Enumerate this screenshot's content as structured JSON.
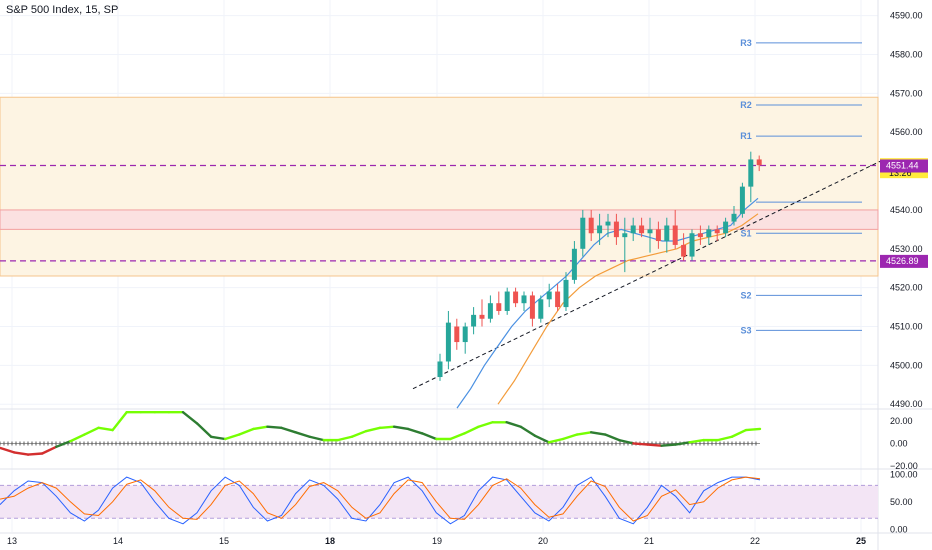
{
  "header": {
    "title": "S&P 500 Index, 15, SP"
  },
  "colors": {
    "up": "#26a69a",
    "down": "#ef5350",
    "fast_ma": "#4a90e2",
    "slow_ma": "#f39c3b",
    "pivot": "#5b8fd9",
    "zone_fill": "#fdf4e3",
    "zone_edge": "#f5c58c",
    "demand_fill": "#fbe1e1",
    "demand_edge": "#f2a0a0",
    "dashed": "#9c27b0",
    "tag_purple": "#9c27b0",
    "tag_yellow": "#ffeb3b",
    "grid": "#f0f3fa",
    "osc_up": "#76ff03",
    "osc_dn": "#2e7d32",
    "osc_red": "#d32f2f",
    "stoch_k": "#2962ff",
    "stoch_d": "#ff6d00",
    "stoch_band": "#f3e5f5"
  },
  "chart_data": {
    "type": "candlestick",
    "timeframe": "15",
    "x_ticks": [
      {
        "label": "13",
        "pos": 0
      },
      {
        "label": "14",
        "pos": 1
      },
      {
        "label": "15",
        "pos": 2
      },
      {
        "label": "18",
        "pos": 3
      },
      {
        "label": "19",
        "pos": 4
      },
      {
        "label": "20",
        "pos": 5
      },
      {
        "label": "21",
        "pos": 6
      },
      {
        "label": "22",
        "pos": 7
      },
      {
        "label": "25",
        "pos": 8
      }
    ],
    "y_ticks": [
      4490.0,
      4500.0,
      4510.0,
      4520.0,
      4530.0,
      4540.0,
      4550.0,
      4560.0,
      4570.0,
      4580.0,
      4590.0
    ],
    "ylim": [
      4488,
      4593
    ],
    "current_price": "4551.52",
    "countdown": "13:26",
    "price_tags": [
      "4551.44",
      "4526.89"
    ],
    "pivots": [
      {
        "label": "R3",
        "value": 4583
      },
      {
        "label": "R2",
        "value": 4567
      },
      {
        "label": "R1",
        "value": 4559
      },
      {
        "label": "S1",
        "value": 4534
      },
      {
        "label": "S2",
        "value": 4518
      },
      {
        "label": "S3",
        "value": 4509
      }
    ],
    "zones": [
      {
        "from": 4523,
        "to": 4569,
        "kind": "supply"
      },
      {
        "from": 4535,
        "to": 4540,
        "kind": "demand"
      }
    ],
    "dashed_levels": [
      4551.44,
      4526.89
    ],
    "candles": [
      {
        "o": 4497,
        "h": 4503,
        "l": 4496,
        "c": 4501
      },
      {
        "o": 4501,
        "h": 4514,
        "l": 4499,
        "c": 4511
      },
      {
        "o": 4510,
        "h": 4512,
        "l": 4504,
        "c": 4506
      },
      {
        "o": 4506,
        "h": 4511,
        "l": 4503,
        "c": 4510
      },
      {
        "o": 4510,
        "h": 4515,
        "l": 4508,
        "c": 4513
      },
      {
        "o": 4513,
        "h": 4517,
        "l": 4510,
        "c": 4512
      },
      {
        "o": 4512,
        "h": 4518,
        "l": 4511,
        "c": 4516
      },
      {
        "o": 4516,
        "h": 4519,
        "l": 4513,
        "c": 4514
      },
      {
        "o": 4514,
        "h": 4520,
        "l": 4513,
        "c": 4519
      },
      {
        "o": 4519,
        "h": 4520,
        "l": 4515,
        "c": 4516
      },
      {
        "o": 4516,
        "h": 4519,
        "l": 4514,
        "c": 4518
      },
      {
        "o": 4518,
        "h": 4519,
        "l": 4510,
        "c": 4512
      },
      {
        "o": 4512,
        "h": 4518,
        "l": 4511,
        "c": 4517
      },
      {
        "o": 4517,
        "h": 4521,
        "l": 4515,
        "c": 4519
      },
      {
        "o": 4519,
        "h": 4521,
        "l": 4514,
        "c": 4515
      },
      {
        "o": 4515,
        "h": 4524,
        "l": 4514,
        "c": 4522
      },
      {
        "o": 4522,
        "h": 4532,
        "l": 4521,
        "c": 4530
      },
      {
        "o": 4530,
        "h": 4540,
        "l": 4528,
        "c": 4538
      },
      {
        "o": 4538,
        "h": 4540,
        "l": 4532,
        "c": 4534
      },
      {
        "o": 4534,
        "h": 4539,
        "l": 4531,
        "c": 4536
      },
      {
        "o": 4536,
        "h": 4539,
        "l": 4533,
        "c": 4537
      },
      {
        "o": 4537,
        "h": 4539,
        "l": 4531,
        "c": 4533
      },
      {
        "o": 4533,
        "h": 4538,
        "l": 4524,
        "c": 4534
      },
      {
        "o": 4534,
        "h": 4538,
        "l": 4532,
        "c": 4536
      },
      {
        "o": 4536,
        "h": 4538,
        "l": 4533,
        "c": 4534
      },
      {
        "o": 4534,
        "h": 4538,
        "l": 4529,
        "c": 4535
      },
      {
        "o": 4535,
        "h": 4537,
        "l": 4530,
        "c": 4532
      },
      {
        "o": 4532,
        "h": 4538,
        "l": 4529,
        "c": 4536
      },
      {
        "o": 4536,
        "h": 4540,
        "l": 4530,
        "c": 4531
      },
      {
        "o": 4531,
        "h": 4534,
        "l": 4527,
        "c": 4528
      },
      {
        "o": 4528,
        "h": 4535,
        "l": 4527,
        "c": 4534
      },
      {
        "o": 4534,
        "h": 4536,
        "l": 4531,
        "c": 4533
      },
      {
        "o": 4533,
        "h": 4536,
        "l": 4531,
        "c": 4535
      },
      {
        "o": 4535,
        "h": 4536,
        "l": 4532,
        "c": 4534
      },
      {
        "o": 4534,
        "h": 4538,
        "l": 4533,
        "c": 4537
      },
      {
        "o": 4537,
        "h": 4541,
        "l": 4536,
        "c": 4539
      },
      {
        "o": 4539,
        "h": 4547,
        "l": 4538,
        "c": 4546
      },
      {
        "o": 4546,
        "h": 4555,
        "l": 4542,
        "c": 4553
      },
      {
        "o": 4553,
        "h": 4554,
        "l": 4550,
        "c": 4551.52
      }
    ],
    "fast_ma": [
      4489,
      4494,
      4500,
      4505,
      4510,
      4514,
      4517,
      4520,
      4523,
      4527,
      4531,
      4534,
      4535,
      4534,
      4533,
      4532,
      4532,
      4533,
      4534,
      4535,
      4536,
      4540,
      4543
    ],
    "slow_ma": [
      4490,
      4496,
      4503,
      4510,
      4516,
      4520,
      4523,
      4525,
      4527,
      4528,
      4529,
      4530,
      4532,
      4533,
      4534,
      4536,
      4539
    ],
    "oscillator": {
      "ticks": [
        "20.00",
        "0.00",
        "−20.00"
      ],
      "ylim": [
        -22,
        30
      ],
      "values": [
        -4,
        -8,
        -10,
        -9,
        -3,
        2,
        8,
        14,
        12,
        30,
        30,
        30,
        30,
        30,
        18,
        6,
        4,
        8,
        13,
        15,
        14,
        10,
        6,
        3,
        3,
        6,
        11,
        14,
        15,
        13,
        9,
        4,
        4,
        9,
        15,
        19,
        19,
        15,
        7,
        1,
        4,
        8,
        10,
        8,
        3,
        0,
        -1,
        -2,
        -1,
        1,
        3,
        3,
        6,
        12,
        13
      ],
      "colors": [
        "red",
        "red",
        "red",
        "red",
        "red",
        "green",
        "up",
        "up",
        "up",
        "up",
        "up",
        "up",
        "up",
        "up",
        "dn",
        "dn",
        "dn",
        "up",
        "up",
        "up",
        "dn",
        "dn",
        "dn",
        "dn",
        "up",
        "up",
        "up",
        "up",
        "up",
        "dn",
        "dn",
        "dn",
        "up",
        "up",
        "up",
        "up",
        "up",
        "dn",
        "dn",
        "dn",
        "up",
        "up",
        "up",
        "dn",
        "dn",
        "dn",
        "red",
        "red",
        "dn",
        "dn",
        "up",
        "up",
        "up",
        "up",
        "up"
      ]
    },
    "stochastic": {
      "ticks": [
        "100.00",
        "50.00",
        "0.00"
      ],
      "ylim": [
        -5,
        108
      ],
      "band": [
        20,
        80
      ],
      "k": [
        45,
        70,
        88,
        85,
        60,
        30,
        15,
        35,
        75,
        95,
        85,
        50,
        20,
        10,
        30,
        70,
        95,
        80,
        40,
        15,
        25,
        65,
        90,
        80,
        55,
        20,
        15,
        45,
        85,
        95,
        70,
        30,
        10,
        25,
        70,
        95,
        90,
        60,
        30,
        15,
        40,
        80,
        95,
        60,
        20,
        10,
        40,
        80,
        60,
        30,
        70,
        85,
        95,
        95,
        90
      ],
      "d": [
        55,
        60,
        75,
        85,
        75,
        50,
        28,
        25,
        50,
        82,
        90,
        70,
        40,
        20,
        18,
        45,
        80,
        88,
        65,
        30,
        20,
        45,
        78,
        85,
        70,
        40,
        20,
        30,
        65,
        90,
        85,
        50,
        20,
        18,
        45,
        80,
        92,
        75,
        45,
        22,
        28,
        60,
        88,
        78,
        40,
        15,
        25,
        60,
        72,
        45,
        50,
        75,
        90,
        95,
        92
      ]
    }
  }
}
